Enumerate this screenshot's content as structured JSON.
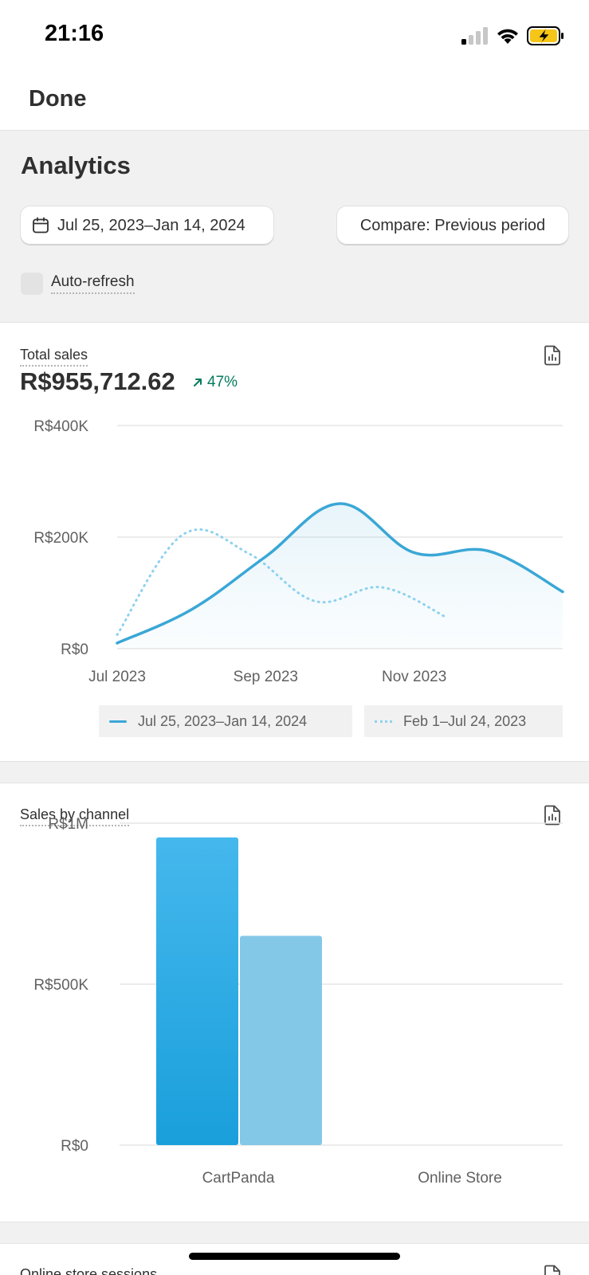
{
  "status_bar": {
    "time": "21:16"
  },
  "nav": {
    "done_label": "Done"
  },
  "header": {
    "title": "Analytics",
    "date_range": "Jul 25, 2023–Jan 14, 2024",
    "compare": "Compare: Previous period",
    "auto_refresh_label": "Auto-refresh"
  },
  "total_sales": {
    "title": "Total sales",
    "value": "R$955,712.62",
    "change": "47%",
    "legend_current": "Jul 25, 2023–Jan 14, 2024",
    "legend_previous": "Feb 1–Jul 24, 2023"
  },
  "sales_by_channel": {
    "title": "Sales by channel"
  },
  "online_store_sessions": {
    "title": "Online store sessions"
  },
  "colors": {
    "accent": "#3aa7d6",
    "previous": "#8ed1ee",
    "positive": "#047b5d",
    "bar_current": "#1a9fdb",
    "bar_previous": "#84c8e8"
  },
  "chart_data": [
    {
      "type": "line",
      "ylabel": "",
      "xlabel": "",
      "ylim": [
        0,
        400000
      ],
      "y_ticks": [
        "R$400K",
        "R$200K",
        "R$0"
      ],
      "x_ticks": [
        "Jul 2023",
        "Sep 2023",
        "Nov 2023"
      ],
      "grid": true,
      "legend": "bottom",
      "series": [
        {
          "name": "Jul 25, 2023–Jan 14, 2024",
          "x": [
            "Jul 2023",
            "Aug 2023",
            "Sep 2023",
            "Oct 2023",
            "Nov 2023",
            "Dec 2023",
            "Jan 2024"
          ],
          "values": [
            10000,
            70000,
            165000,
            260000,
            172000,
            175000,
            102000
          ]
        },
        {
          "name": "Feb 1–Jul 24, 2023",
          "x": [
            "Jul 2023",
            "Aug 2023",
            "Sep 2023",
            "Oct 2023",
            "Nov 2023",
            "Dec 2023"
          ],
          "values": [
            25000,
            205000,
            170000,
            85000,
            110000,
            55000
          ]
        }
      ]
    },
    {
      "type": "bar",
      "ylim": [
        0,
        1000000
      ],
      "y_ticks": [
        "R$1M",
        "R$500K",
        "R$0"
      ],
      "categories": [
        "CartPanda",
        "Online Store"
      ],
      "grid": true,
      "series": [
        {
          "name": "Jul 25, 2023–Jan 14, 2024",
          "values": [
            955712.62,
            0
          ]
        },
        {
          "name": "Feb 1–Jul 24, 2023",
          "values": [
            650000,
            0
          ]
        }
      ]
    }
  ]
}
